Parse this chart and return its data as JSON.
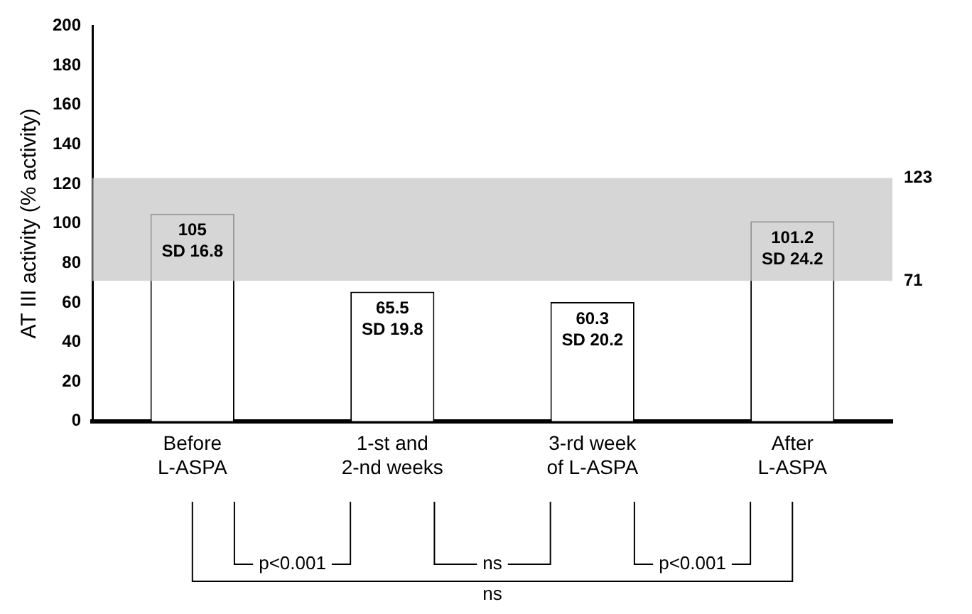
{
  "chart_data": {
    "type": "bar",
    "ylabel": "AT III activity (% activity)",
    "categories": [
      "Before\nL-ASPA",
      "1-st and\n2-nd weeks",
      "3-rd week\nof L-ASPA",
      "After\nL-ASPA"
    ],
    "values": [
      105,
      65.5,
      60.3,
      101.2
    ],
    "color": "#ffffff",
    "value_labels": [
      "105\nSD 16.8",
      "65.5\nSD 19.8",
      "60.3\nSD 20.2",
      "101.2\nSD 24.2"
    ],
    "ylim": [
      0,
      200
    ],
    "yticks": [
      0,
      20,
      40,
      60,
      80,
      100,
      120,
      140,
      160,
      180,
      200
    ],
    "grid": false,
    "legend": false,
    "bands": [
      {
        "axis": "y",
        "from": 71,
        "to": 123,
        "color": "#c8c8c8"
      }
    ],
    "annotations": [
      "p<0.001",
      "ns",
      "p<0.001",
      "ns",
      "123",
      "71"
    ]
  }
}
